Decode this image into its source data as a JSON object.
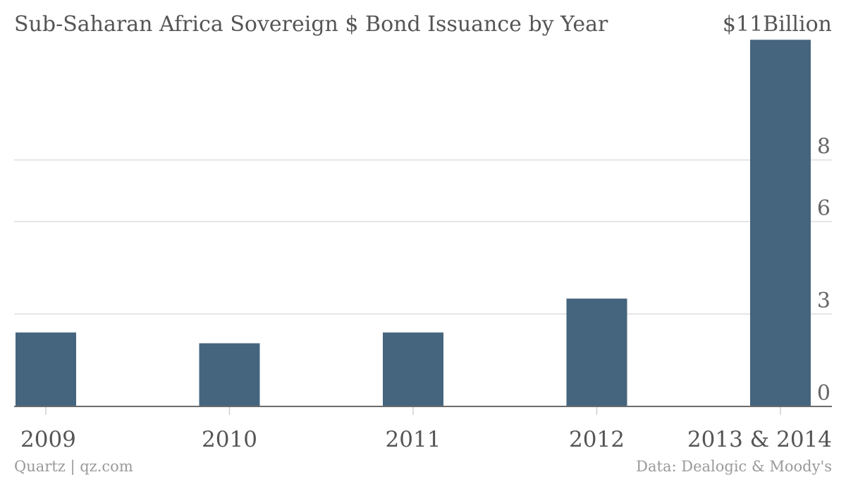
{
  "chart_data": {
    "type": "bar",
    "title": "Sub-Saharan Africa Sovereign $ Bond Issuance by Year",
    "unit_label": "$11Billion",
    "categories": [
      "2009",
      "2010",
      "2011",
      "2012",
      "2013 & 2014"
    ],
    "series": [
      {
        "values": [
          2.4,
          2.05,
          2.4,
          3.5,
          11.9
        ],
        "color": "#45657e"
      }
    ],
    "ylim": [
      0,
      12
    ],
    "yticks": [
      0,
      3,
      6,
      8
    ],
    "ytick_labels": [
      "0",
      "3",
      "6",
      "8"
    ],
    "grid": true,
    "axis_position": "right",
    "source_left": "Quartz | qz.com",
    "source_right": "Data: Dealogic & Moody's"
  }
}
